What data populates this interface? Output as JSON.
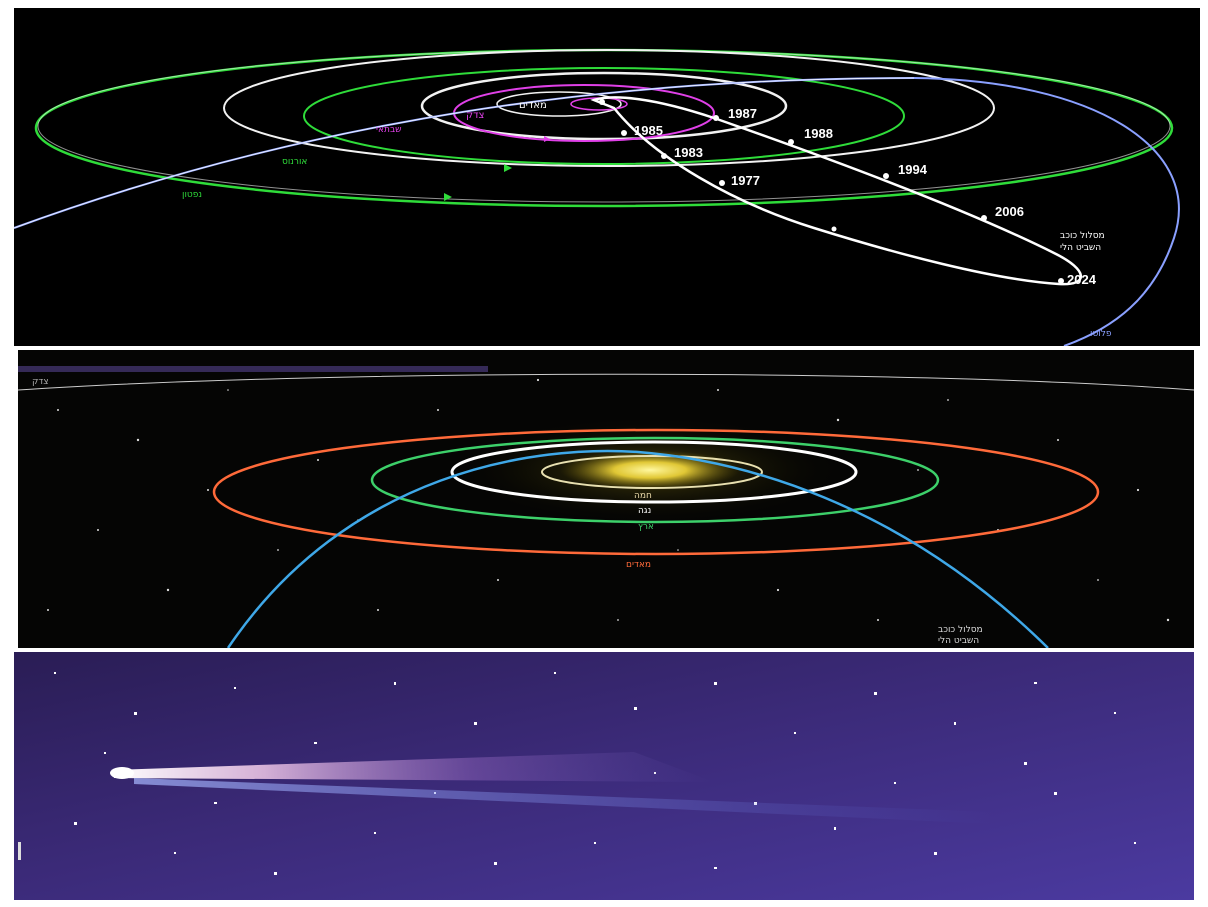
{
  "colors": {
    "green_orbit": "#2fdc3a",
    "white_orbit": "#f2f2f2",
    "magenta_orbit": "#e040e8",
    "comet_path": "#ffffff",
    "blue_orbit": "#8aa0ff",
    "mars_orbit": "#ff6a3a",
    "earth_orbit": "#3dd06a",
    "comet_blue": "#3fa8e8",
    "sun_glow": "#fff36a",
    "sky_purple": "#3b2a78"
  },
  "top_diagram": {
    "years": [
      "1987",
      "1988",
      "1985",
      "1983",
      "1977",
      "1994",
      "2006",
      "2024"
    ],
    "labels": {
      "mars": "מאדים",
      "earth": "צדק",
      "jupiter": "שבתאי",
      "saturn": "אורנוס",
      "uranus": "נפטון",
      "neptune": "פלוטו",
      "comet_path_line1": "מסלול כוכב",
      "comet_path_line2": "השביט הלי"
    }
  },
  "middle_diagram": {
    "labels": {
      "top_left": "צדק",
      "mercury": "חמה",
      "venus": "נגה",
      "earth": "ארץ",
      "mars": "מאדים",
      "comet_path_line1": "מסלול כוכב",
      "comet_path_line2": "השביט הלי"
    }
  },
  "bottom_photo": {
    "icons": [
      "comet-icon"
    ]
  }
}
